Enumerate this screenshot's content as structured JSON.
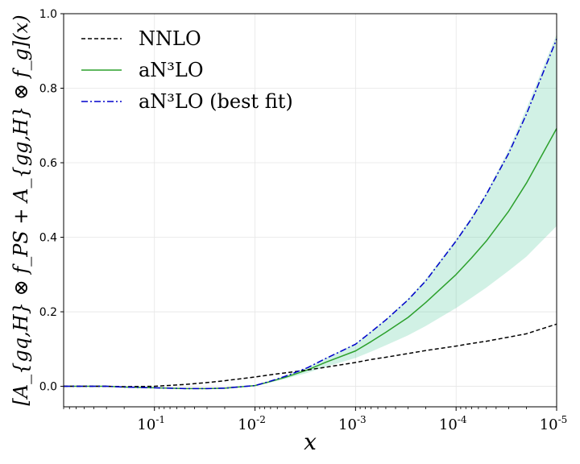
{
  "chart_data": {
    "type": "line",
    "xlabel": "x",
    "ylabel": "[A_{gq,H} ⊗ f_PS + A_{gg,H} ⊗ f_g](x)",
    "x_scale": "log",
    "x_axis_direction": "decreasing",
    "xlim": [
      0.8,
      1e-05
    ],
    "ylim": [
      -0.055,
      1.0
    ],
    "grid": true,
    "legend_position": "upper-left",
    "x_ticks": [
      {
        "value": 0.1,
        "mantissa": "10",
        "exponent": "-1"
      },
      {
        "value": 0.01,
        "mantissa": "10",
        "exponent": "-2"
      },
      {
        "value": 0.001,
        "mantissa": "10",
        "exponent": "-3"
      },
      {
        "value": 0.0001,
        "mantissa": "10",
        "exponent": "-4"
      },
      {
        "value": 1e-05,
        "mantissa": "10",
        "exponent": "-5"
      }
    ],
    "y_ticks": [
      {
        "value": 0.0,
        "label": "0.0"
      },
      {
        "value": 0.2,
        "label": "0.2"
      },
      {
        "value": 0.4,
        "label": "0.4"
      },
      {
        "value": 0.6,
        "label": "0.6"
      },
      {
        "value": 0.8,
        "label": "0.8"
      },
      {
        "value": 1.0,
        "label": "1.0"
      }
    ],
    "x": [
      0.8,
      0.5,
      0.3,
      0.2,
      0.1,
      0.05,
      0.03,
      0.02,
      0.01,
      0.007,
      0.005,
      0.003,
      0.002,
      0.001,
      0.0007,
      0.0005,
      0.0003,
      0.0002,
      0.0001,
      7e-05,
      5e-05,
      3e-05,
      2e-05,
      1e-05
    ],
    "series": [
      {
        "name": "NNLO",
        "color": "#000000",
        "dash": "dashed",
        "values": [
          0.0,
          0.0,
          0.0,
          -0.001,
          0.0,
          0.005,
          0.01,
          0.015,
          0.025,
          0.031,
          0.036,
          0.044,
          0.051,
          0.064,
          0.072,
          0.078,
          0.088,
          0.096,
          0.108,
          0.115,
          0.121,
          0.132,
          0.141,
          0.167
        ]
      },
      {
        "name": "aN³LO",
        "color": "#2ca02c",
        "dash": "solid",
        "values": [
          0.0,
          0.0,
          0.0,
          -0.002,
          -0.004,
          -0.006,
          -0.006,
          -0.005,
          0.002,
          0.013,
          0.024,
          0.044,
          0.064,
          0.095,
          0.12,
          0.145,
          0.185,
          0.225,
          0.3,
          0.345,
          0.39,
          0.47,
          0.545,
          0.692
        ]
      },
      {
        "name": "aN³LO (best fit)",
        "color": "#0000cc",
        "dash": "dashdot",
        "values": [
          0.0,
          0.0,
          0.0,
          -0.002,
          -0.004,
          -0.006,
          -0.006,
          -0.005,
          0.002,
          0.014,
          0.027,
          0.05,
          0.074,
          0.113,
          0.146,
          0.178,
          0.232,
          0.283,
          0.39,
          0.45,
          0.515,
          0.625,
          0.73,
          0.932
        ]
      }
    ],
    "band": {
      "series": "aN³LO",
      "color": "#2ebf8a",
      "lower": [
        0.0,
        0.0,
        0.0,
        -0.002,
        -0.004,
        -0.006,
        -0.006,
        -0.005,
        0.0,
        0.01,
        0.02,
        0.036,
        0.052,
        0.076,
        0.093,
        0.11,
        0.137,
        0.162,
        0.21,
        0.238,
        0.265,
        0.31,
        0.348,
        0.43
      ],
      "upper": [
        0.0,
        0.0,
        0.0,
        -0.002,
        -0.004,
        -0.006,
        -0.006,
        -0.005,
        0.003,
        0.015,
        0.028,
        0.051,
        0.075,
        0.115,
        0.148,
        0.18,
        0.236,
        0.288,
        0.395,
        0.456,
        0.52,
        0.635,
        0.745,
        0.945
      ]
    }
  }
}
